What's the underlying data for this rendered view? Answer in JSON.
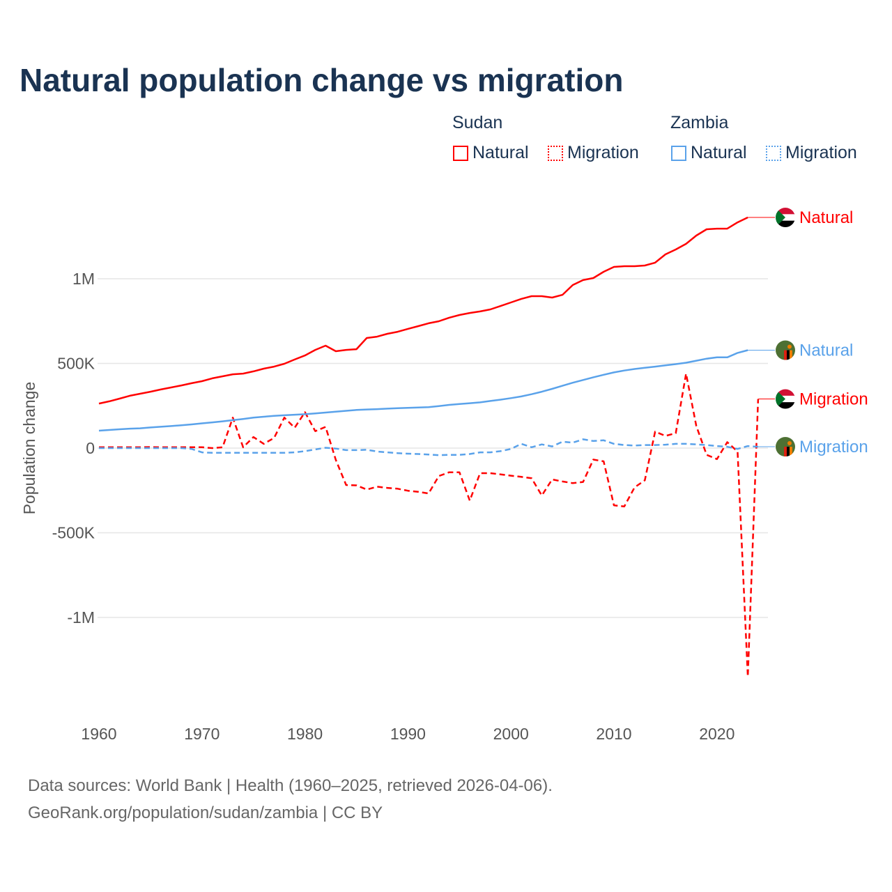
{
  "title": "Natural population change vs migration",
  "legend": {
    "groups": [
      {
        "name": "Sudan",
        "items": [
          "Natural",
          "Migration"
        ],
        "color": "#ff0000"
      },
      {
        "name": "Zambia",
        "items": [
          "Natural",
          "Migration"
        ],
        "color": "#5aa2ea"
      }
    ]
  },
  "source": {
    "line1": "Data sources: World Bank | Health (1960–2025, retrieved 2026-04-06).",
    "line2": "GeoRank.org/population/sudan/zambia | CC BY"
  },
  "chart_data": {
    "type": "line",
    "title": "Natural population change vs migration",
    "xlabel": "",
    "ylabel": "Population change",
    "xlim": [
      1960,
      2025
    ],
    "ylim": [
      -1450000,
      1450000
    ],
    "x_ticks": [
      1960,
      1970,
      1980,
      1990,
      2000,
      2010,
      2020
    ],
    "y_ticks": [
      {
        "v": 1000000,
        "label": "1M"
      },
      {
        "v": 500000,
        "label": "500K"
      },
      {
        "v": 0,
        "label": "0"
      },
      {
        "v": -500000,
        "label": "-500K"
      },
      {
        "v": -1000000,
        "label": "-1M"
      }
    ],
    "grid": true,
    "series": [
      {
        "name": "Natural",
        "country": "Sudan",
        "color": "#ff0000",
        "dash": false,
        "start_year": 1960,
        "values_k": [
          263,
          276,
          292,
          309,
          321,
          333,
          346,
          358,
          370,
          383,
          395,
          412,
          424,
          436,
          440,
          453,
          469,
          481,
          498,
          523,
          547,
          580,
          605,
          572,
          580,
          584,
          650,
          658,
          675,
          687,
          704,
          720,
          737,
          749,
          770,
          786,
          798,
          807,
          819,
          839,
          860,
          881,
          897,
          897,
          889,
          905,
          963,
          992,
          1004,
          1041,
          1070,
          1074,
          1074,
          1078,
          1095,
          1144,
          1173,
          1206,
          1255,
          1292,
          1296,
          1296,
          1333,
          1362
        ]
      },
      {
        "name": "Natural",
        "country": "Zambia",
        "color": "#5aa2ea",
        "dash": false,
        "start_year": 1960,
        "values_k": [
          103,
          107,
          111,
          115,
          117,
          122,
          126,
          130,
          135,
          140,
          146,
          152,
          158,
          165,
          172,
          180,
          185,
          190,
          194,
          197,
          200,
          205,
          210,
          215,
          220,
          225,
          228,
          230,
          233,
          236,
          238,
          240,
          242,
          248,
          255,
          260,
          265,
          270,
          278,
          286,
          295,
          305,
          318,
          333,
          350,
          368,
          386,
          402,
          418,
          433,
          447,
          458,
          467,
          474,
          481,
          489,
          496,
          504,
          516,
          528,
          536,
          536,
          562,
          578
        ]
      },
      {
        "name": "Migration",
        "country": "Sudan",
        "color": "#ff0000",
        "dash": true,
        "start_year": 1960,
        "values_k": [
          5,
          5,
          5,
          5,
          5,
          6,
          5,
          5,
          5,
          5,
          5,
          0,
          5,
          180,
          5,
          65,
          25,
          60,
          180,
          120,
          212,
          100,
          125,
          -70,
          -218,
          -220,
          -245,
          -228,
          -235,
          -240,
          -252,
          -258,
          -268,
          -165,
          -143,
          -143,
          -310,
          -148,
          -148,
          -155,
          -163,
          -170,
          -178,
          -280,
          -185,
          -197,
          -207,
          -200,
          -68,
          -78,
          -338,
          -345,
          -232,
          -190,
          97,
          72,
          88,
          440,
          130,
          -40,
          -65,
          35,
          -20,
          -1350,
          290
        ]
      },
      {
        "name": "Migration",
        "country": "Zambia",
        "color": "#5aa2ea",
        "dash": true,
        "start_year": 1960,
        "values_k": [
          0,
          0,
          0,
          0,
          0,
          0,
          0,
          0,
          0,
          -5,
          -25,
          -28,
          -28,
          -28,
          -28,
          -28,
          -28,
          -28,
          -28,
          -25,
          -18,
          -8,
          2,
          -3,
          -12,
          -12,
          -10,
          -20,
          -25,
          -30,
          -33,
          -35,
          -38,
          -42,
          -40,
          -40,
          -35,
          -25,
          -25,
          -18,
          -5,
          25,
          5,
          22,
          10,
          38,
          32,
          52,
          42,
          46,
          25,
          18,
          15,
          18,
          18,
          20,
          25,
          25,
          22,
          18,
          12,
          8,
          -5,
          12,
          8
        ]
      }
    ],
    "end_labels": [
      "Natural",
      "Natural",
      "Migration",
      "Migration"
    ]
  }
}
